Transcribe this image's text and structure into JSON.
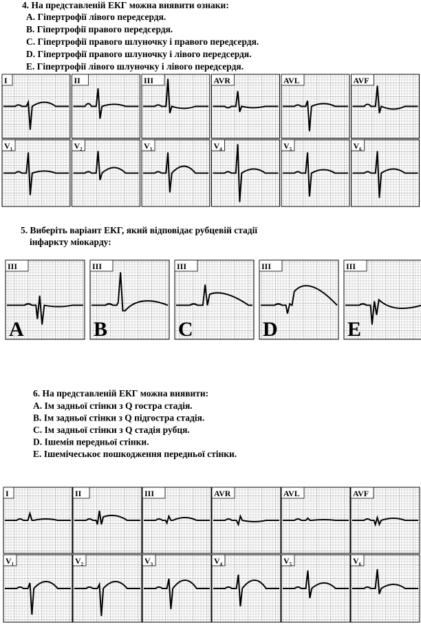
{
  "q4": {
    "title": "4. На представленій ЕКГ можна виявити ознаки:",
    "options": [
      "A. Гіпертрофії лівого передсердя.",
      "B. Гіпертрофії правого передсердя.",
      "C. Гіпертрофії правого шлуночку і правого передсердя.",
      "D. Гіпертрофії правого шлуночку і лівого передсердя.",
      "E. Гіпертрофії лівого шлуночку і лівого передсердя."
    ]
  },
  "ecg1": {
    "limb": [
      "I",
      "II",
      "III",
      "AVR",
      "AVL",
      "AVF"
    ],
    "chest": [
      {
        "lead": "V",
        "sub": "1"
      },
      {
        "lead": "V",
        "sub": "2"
      },
      {
        "lead": "V",
        "sub": "3"
      },
      {
        "lead": "V",
        "sub": "4"
      },
      {
        "lead": "V",
        "sub": "5"
      },
      {
        "lead": "V",
        "sub": "6"
      }
    ]
  },
  "q5": {
    "title": [
      "5. Виберіть варіант ЕКГ, який відповідає рубцевій стадії",
      "інфаркту міокарду:"
    ],
    "panels": [
      {
        "lead": "III",
        "letter": "A"
      },
      {
        "lead": "III",
        "letter": "B"
      },
      {
        "lead": "III",
        "letter": "C"
      },
      {
        "lead": "III",
        "letter": "D"
      },
      {
        "lead": "III",
        "letter": "E"
      }
    ]
  },
  "q6": {
    "title": "6. На представленій ЕКГ можна виявити:",
    "options": [
      "A. Ім задньої стінки з Q гостра стадія.",
      "B. Ім задньої стінки з Q підгостра стадія.",
      "C. Ім задньої стінки з Q стадія рубця.",
      "D. Ішемія передньої стінки.",
      "E. Ішемічеськоє пошкодження передньої стінки."
    ]
  },
  "ecg2": {
    "limb": [
      "I",
      "II",
      "III",
      "AVR",
      "AVL",
      "AVF"
    ],
    "chest": [
      {
        "lead": "V",
        "sub": "1"
      },
      {
        "lead": "V",
        "sub": "2"
      },
      {
        "lead": "V",
        "sub": "3"
      },
      {
        "lead": "V",
        "sub": "4"
      },
      {
        "lead": "V",
        "sub": "5"
      },
      {
        "lead": "V",
        "sub": "6"
      }
    ]
  }
}
